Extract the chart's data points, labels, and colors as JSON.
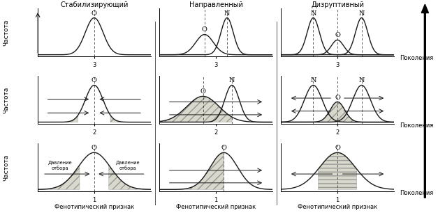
{
  "col_titles": [
    "Стабилизирующий",
    "Направленный",
    "Дизруптивный"
  ],
  "ylabel": "Частота",
  "xlabel_right": "Поколения",
  "xlabel_bottom": "Фенотипический признак",
  "curve_color": "#1a1a1a",
  "fill_color": "#d0cfc0",
  "arrow_color": "#1a1a1a",
  "row_xticks": [
    "3",
    "2",
    "1"
  ]
}
